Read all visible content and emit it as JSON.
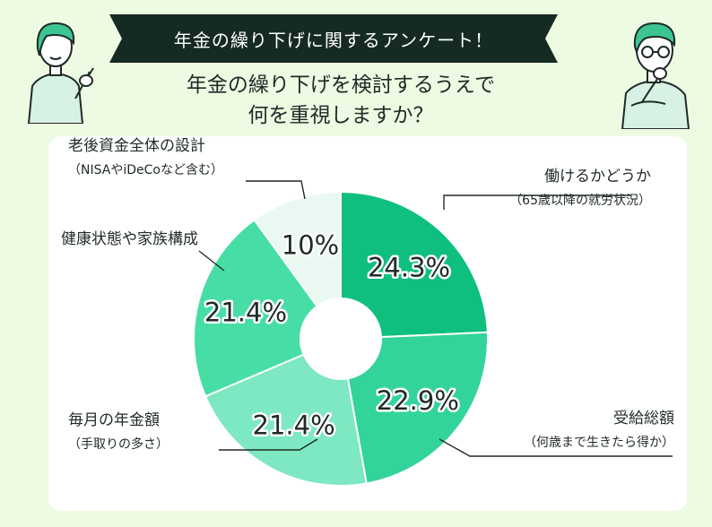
{
  "banner": {
    "text": "年金の繰り下げに関するアンケート！"
  },
  "title": {
    "line1": "年金の繰り下げを検討するうえで",
    "line2": "何を重視しますか？"
  },
  "chart_data": {
    "type": "pie",
    "donut": true,
    "slices": [
      {
        "label": "働けるかどうか",
        "sublabel": "（65歳以降の就労状況）",
        "value": 24.3,
        "display": "24.3%",
        "color": "#0fbf7e"
      },
      {
        "label": "受給総額",
        "sublabel": "（何歳まで生きたら得か）",
        "value": 22.9,
        "display": "22.9%",
        "color": "#33d49a"
      },
      {
        "label": "毎月の年金額",
        "sublabel": "（手取りの多さ）",
        "value": 21.4,
        "display": "21.4%",
        "color": "#7de8c1"
      },
      {
        "label": "健康状態や家族構成",
        "sublabel": "",
        "value": 21.4,
        "display": "21.4%",
        "color": "#47dea6"
      },
      {
        "label": "老後資金全体の設計",
        "sublabel": "（NISAやiDeCoなど含む）",
        "value": 10,
        "display": "10%",
        "color": "#e9f9f1"
      }
    ]
  },
  "colors": {
    "banner": "#142a22",
    "background": "#eefbe3",
    "card": "#ffffff"
  }
}
